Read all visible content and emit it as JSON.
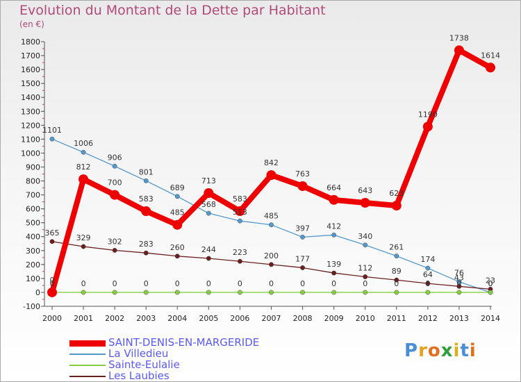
{
  "title": "Evolution du Montant de la Dette par Habitant",
  "unit_label": "(en €)",
  "logo_text": "Proxiti",
  "chart_data": {
    "type": "line",
    "categories": [
      "2000",
      "2001",
      "2002",
      "2003",
      "2004",
      "2005",
      "2006",
      "2007",
      "2008",
      "2009",
      "2010",
      "2011",
      "2012",
      "2013",
      "2014"
    ],
    "ylim": [
      -100,
      1800
    ],
    "ytick_step": 100,
    "grid": false,
    "legend_position": "bottom-left",
    "series": [
      {
        "name": "SAINT-DENIS-EN-MARGERIDE",
        "color": "#ee0000",
        "values": [
          0,
          812,
          700,
          583,
          485,
          713,
          583,
          842,
          763,
          664,
          643,
          623,
          1190,
          1738,
          1614
        ]
      },
      {
        "name": "La Villedieu",
        "color": "#5599cc",
        "values": [
          1101,
          1006,
          906,
          801,
          689,
          568,
          513,
          485,
          397,
          412,
          340,
          261,
          174,
          76,
          0
        ]
      },
      {
        "name": "Sainte-Eulalie",
        "color": "#88cc44",
        "values": [
          0,
          0,
          0,
          0,
          0,
          0,
          0,
          0,
          0,
          0,
          0,
          0,
          0,
          0,
          0
        ]
      },
      {
        "name": "Les Laubies",
        "color": "#6b2020",
        "values": [
          365,
          329,
          302,
          283,
          260,
          244,
          223,
          200,
          177,
          139,
          112,
          89,
          64,
          43,
          23
        ]
      }
    ]
  }
}
